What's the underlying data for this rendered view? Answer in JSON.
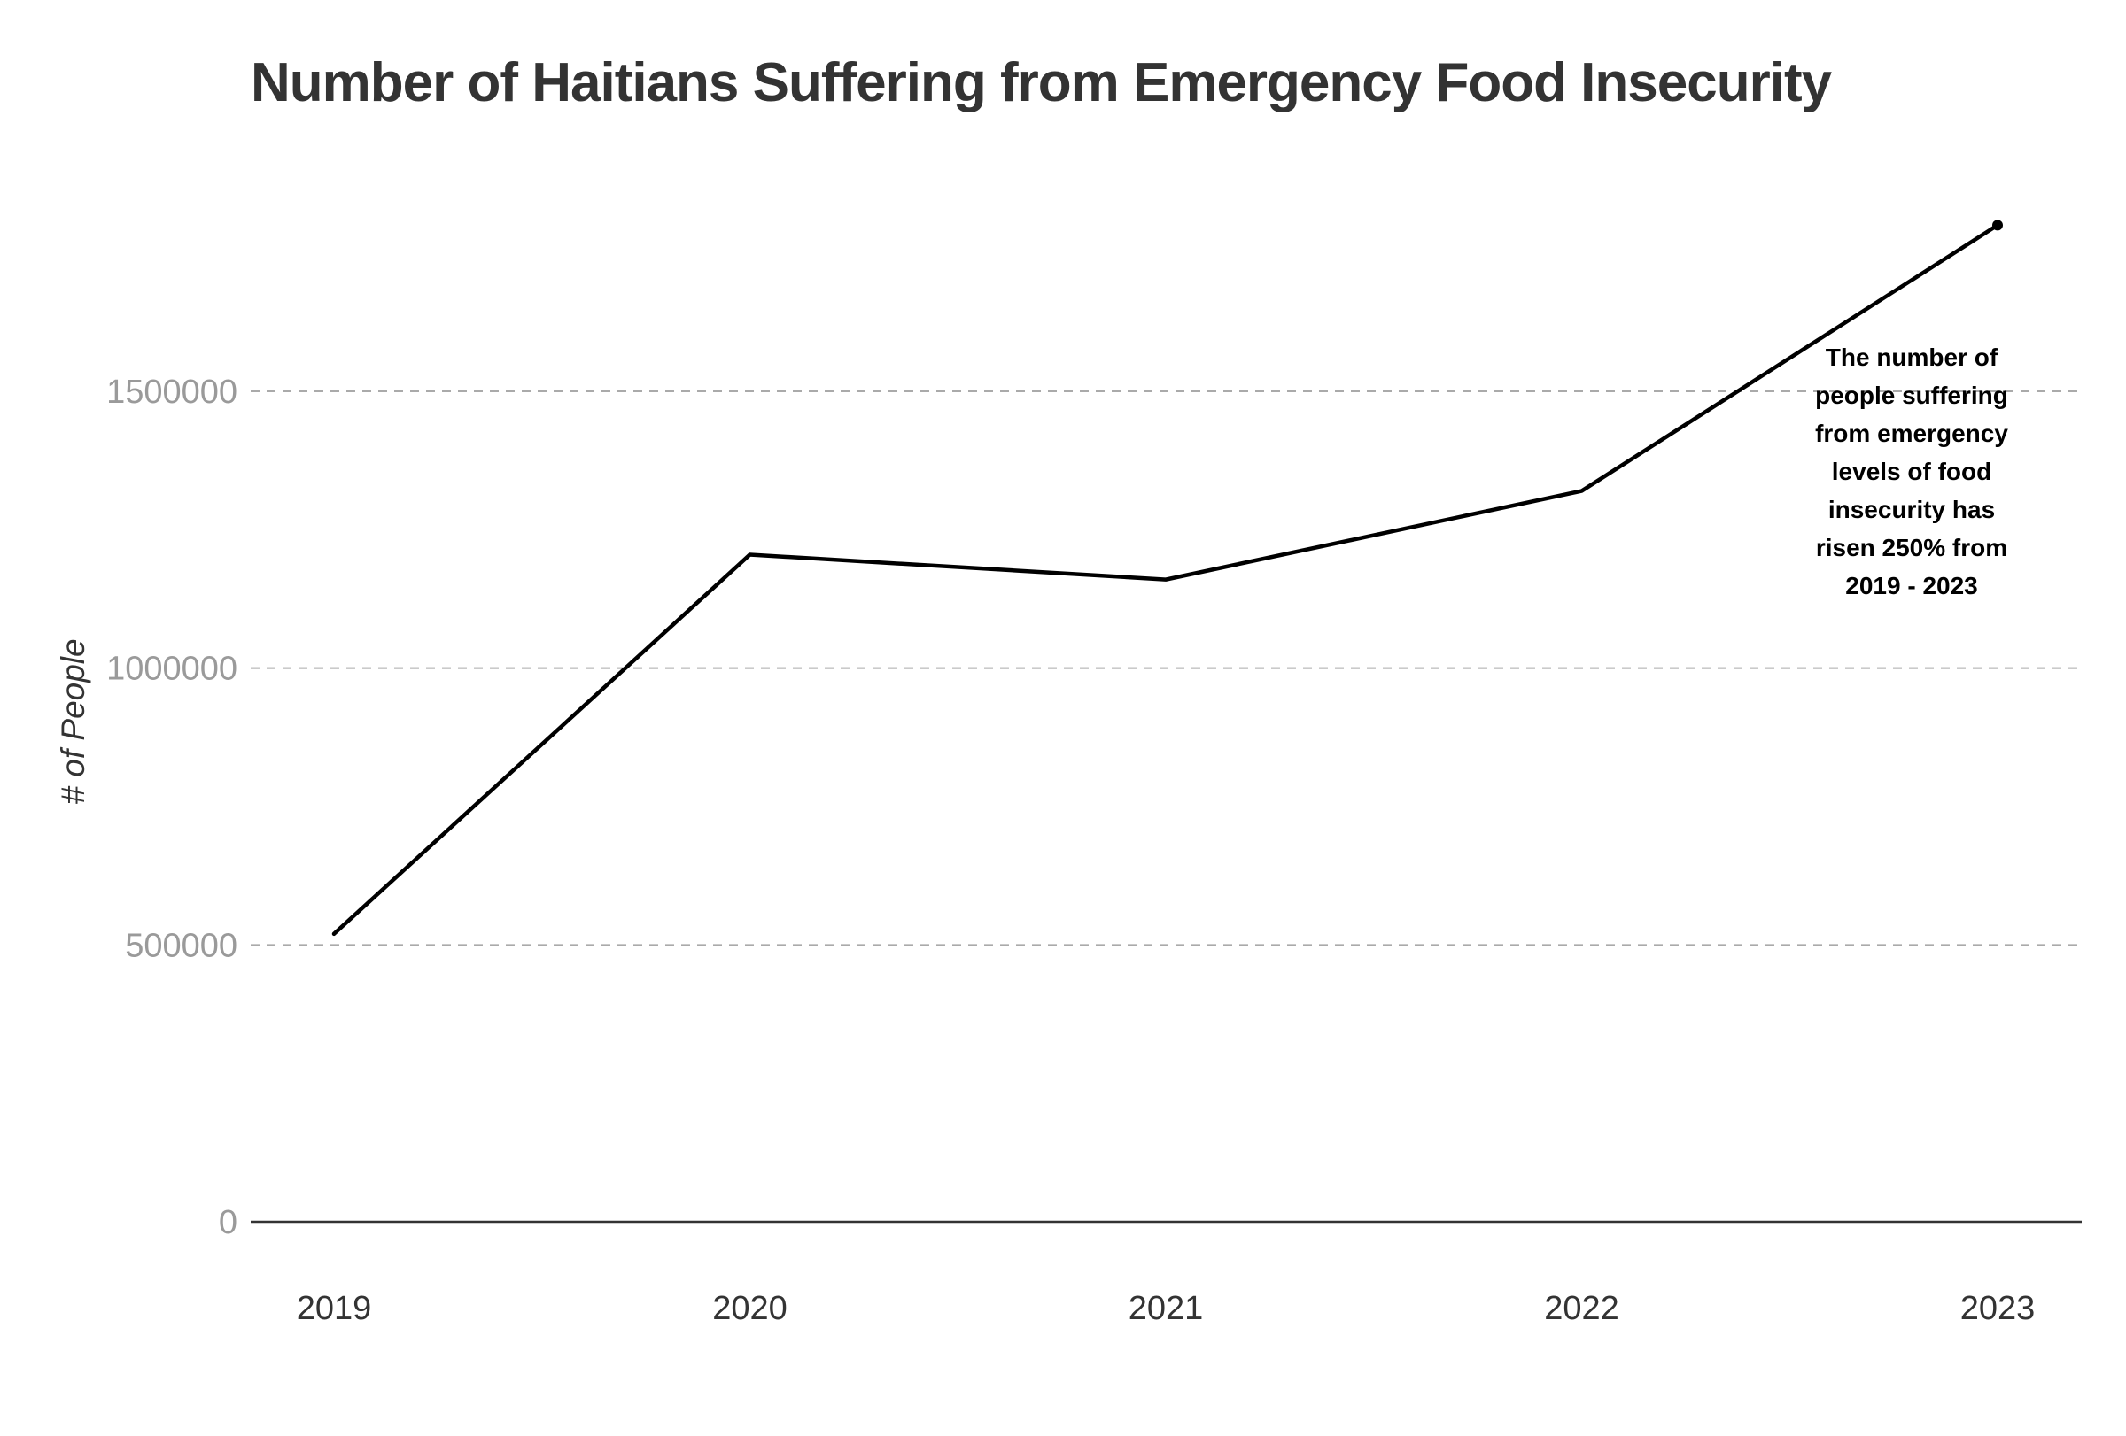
{
  "chart_data": {
    "type": "line",
    "title": "Number of Haitians Suffering from Emergency Food Insecurity",
    "xlabel": "",
    "ylabel": "# of People",
    "categories": [
      "2019",
      "2020",
      "2021",
      "2022",
      "2023"
    ],
    "series": [
      {
        "values": [
          520000,
          1205000,
          1160000,
          1320000,
          1800000
        ]
      }
    ],
    "ylim": [
      0,
      1800000
    ],
    "yticks": [
      0,
      500000,
      1000000,
      1500000
    ],
    "ytick_labels": [
      "0",
      "500000",
      "1000000",
      "1500000"
    ],
    "grid": "horizontal dashed",
    "line_color": "#000000",
    "annotation": {
      "lines": [
        "The number of",
        "people suffering",
        "from emergency",
        "levels of food",
        "insecurity has",
        "risen 250% from",
        "2019 - 2023"
      ]
    }
  }
}
